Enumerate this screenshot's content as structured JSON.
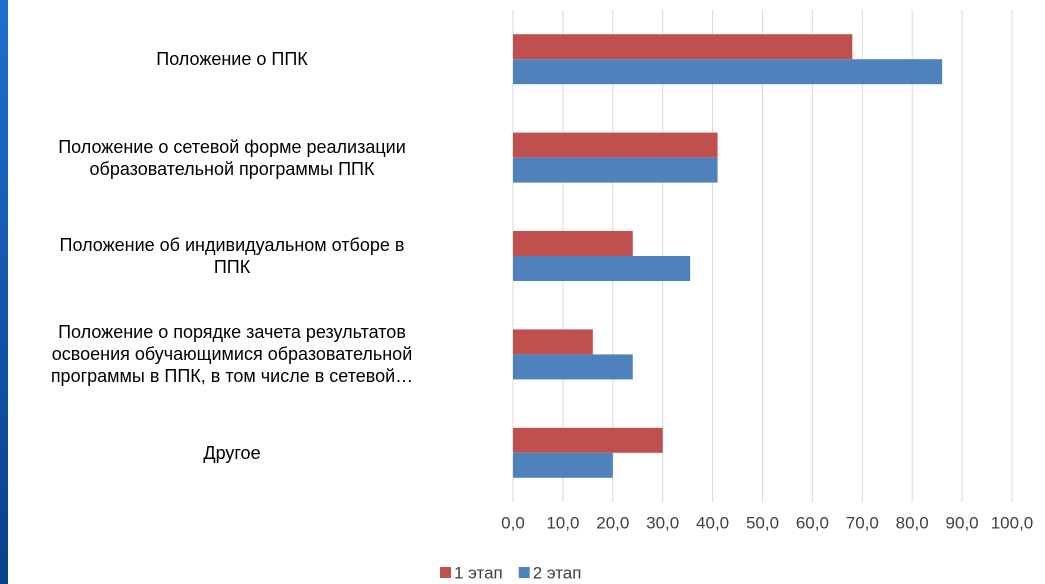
{
  "chart_data": {
    "type": "barh",
    "categories": [
      "Положение о ППК",
      "Положение о сетевой форме реализации\nобразовательной программы ППК",
      "Положение об индивидуальном отборе в\nППК",
      "Положение о порядке зачета результатов\nосвоения обучающимися образовательной\nпрограммы в ППК, в том числе в сетевой…",
      "Другое"
    ],
    "series": [
      {
        "name": "1 этап",
        "color": "#c0504d",
        "values": [
          68,
          41,
          24,
          16,
          30
        ]
      },
      {
        "name": "2 этап",
        "color": "#4f81bd",
        "values": [
          86,
          41,
          35.5,
          24,
          20
        ]
      }
    ],
    "xlim": [
      0,
      100
    ],
    "xticks": [
      {
        "value": 0,
        "label": "0,0"
      },
      {
        "value": 10,
        "label": "10,0"
      },
      {
        "value": 20,
        "label": "20,0"
      },
      {
        "value": 30,
        "label": "30,0"
      },
      {
        "value": 40,
        "label": "40,0"
      },
      {
        "value": 50,
        "label": "50,0"
      },
      {
        "value": 60,
        "label": "60,0"
      },
      {
        "value": 70,
        "label": "70,0"
      },
      {
        "value": 80,
        "label": "80,0"
      },
      {
        "value": 90,
        "label": "90,0"
      },
      {
        "value": 100,
        "label": "100,0"
      }
    ],
    "grid": true,
    "legend": "bottom"
  }
}
